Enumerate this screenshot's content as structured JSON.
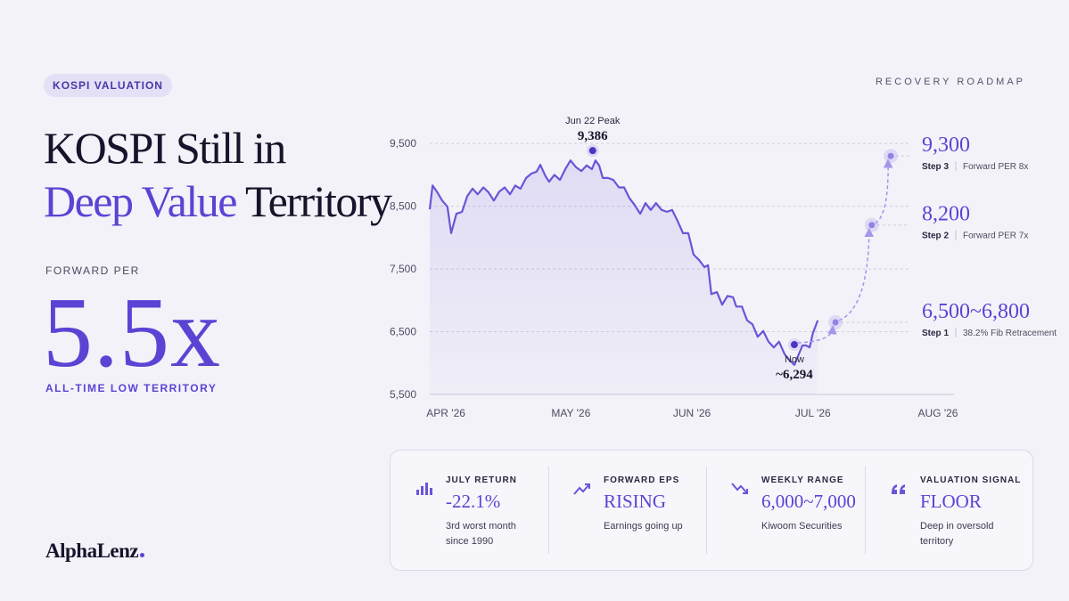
{
  "badge": "KOSPI VALUATION",
  "title": {
    "line1": "KOSPI Still in",
    "highlight": "Deep Value",
    "rest": "Territory"
  },
  "metric": {
    "label": "FORWARD PER",
    "value": "5.5x",
    "caption": "ALL-TIME LOW TERRITORY"
  },
  "brand": "AlphaLenz",
  "chart_data": {
    "type": "line",
    "title": "RECOVERY ROADMAP",
    "color": "#6a55d8",
    "x": [
      0,
      0.7,
      1.8,
      3.1,
      4.4,
      5.3,
      6.6,
      8.0,
      9.3,
      10.6,
      11.9,
      13.3,
      14.6,
      15.9,
      17.2,
      18.6,
      19.9,
      21.2,
      22.5,
      23.9,
      25.2,
      26.5,
      27.4,
      28.7,
      29.6,
      30.9,
      32.3,
      33.6,
      34.9,
      36.3,
      37.6,
      38.9,
      40.2,
      41.1,
      42.0,
      42.9,
      44.2,
      45.5,
      46.9,
      48.2,
      49.5,
      50.8,
      52.2,
      53.5,
      54.8,
      56.1,
      57.5,
      58.8,
      60.1,
      61.4,
      62.8,
      64.1,
      65.4,
      66.8,
      68.1,
      69.0,
      69.8,
      71.2,
      72.5,
      73.8,
      75.2,
      76.0,
      77.4,
      78.7,
      80.0,
      81.3,
      82.7,
      84.0,
      85.3,
      86.6,
      88.0,
      89.3,
      90.4,
      91.5,
      92.4,
      93.3,
      94.2,
      95.0,
      96.2
    ],
    "values": [
      8450,
      8830,
      8730,
      8590,
      8490,
      8070,
      8380,
      8410,
      8660,
      8780,
      8690,
      8800,
      8720,
      8590,
      8730,
      8800,
      8690,
      8830,
      8780,
      8950,
      9020,
      9050,
      9160,
      8980,
      8890,
      9000,
      8920,
      9090,
      9230,
      9120,
      9060,
      9150,
      9090,
      9230,
      9150,
      8950,
      8950,
      8920,
      8800,
      8800,
      8630,
      8520,
      8380,
      8550,
      8440,
      8550,
      8440,
      8410,
      8440,
      8270,
      8070,
      8070,
      7730,
      7640,
      7530,
      7560,
      7100,
      7130,
      6930,
      7070,
      7050,
      6900,
      6900,
      6680,
      6620,
      6420,
      6510,
      6340,
      6250,
      6340,
      6140,
      6040,
      5970,
      6140,
      6280,
      6280,
      6250,
      6480,
      6680
    ],
    "xlim": [
      0,
      126
    ],
    "xticks": [
      {
        "value": 4,
        "label": "APR '26"
      },
      {
        "value": 35,
        "label": "MAY '26"
      },
      {
        "value": 65,
        "label": "JUN '26"
      },
      {
        "value": 95,
        "label": "JUL '26"
      },
      {
        "value": 126,
        "label": "AUG '26"
      }
    ],
    "ylim": [
      5500,
      9800
    ],
    "yticks": [
      {
        "value": 5500,
        "label": "5,500"
      },
      {
        "value": 6500,
        "label": "6,500"
      },
      {
        "value": 7500,
        "label": "7,500"
      },
      {
        "value": 8500,
        "label": "8,500"
      },
      {
        "value": 9500,
        "label": "9,500"
      }
    ],
    "grid": true,
    "annotations": [
      {
        "label": "Jun 22 Peak",
        "value_label": "9,386",
        "value": 9386,
        "x": 40.4,
        "position": "above"
      },
      {
        "label": "Now",
        "value_label": "~6,294",
        "value": 6294,
        "x": 90.4,
        "position": "below"
      }
    ],
    "targets": [
      {
        "step": "Step 3",
        "label": "9,300",
        "value": 9300,
        "x": 114.3,
        "note": "Forward PER 8x"
      },
      {
        "step": "Step 2",
        "label": "8,200",
        "value": 8200,
        "x": 109.6,
        "note": "Forward PER 7x"
      },
      {
        "step": "Step 1",
        "label": "6,500~6,800",
        "low": 6500,
        "high": 6800,
        "x": 100.6,
        "note": "38.2% Fib Retracement"
      }
    ]
  },
  "stats": [
    {
      "label": "JULY RETURN",
      "value": "-22.1%",
      "note": "3rd worst month since 1990"
    },
    {
      "label": "FORWARD EPS",
      "value": "RISING",
      "note": "Earnings going up"
    },
    {
      "label": "WEEKLY RANGE",
      "value": "6,000~7,000",
      "note": "Kiwoom Securities"
    },
    {
      "label": "VALUATION SIGNAL",
      "value": "FLOOR",
      "note": "Deep in oversold territory"
    }
  ]
}
